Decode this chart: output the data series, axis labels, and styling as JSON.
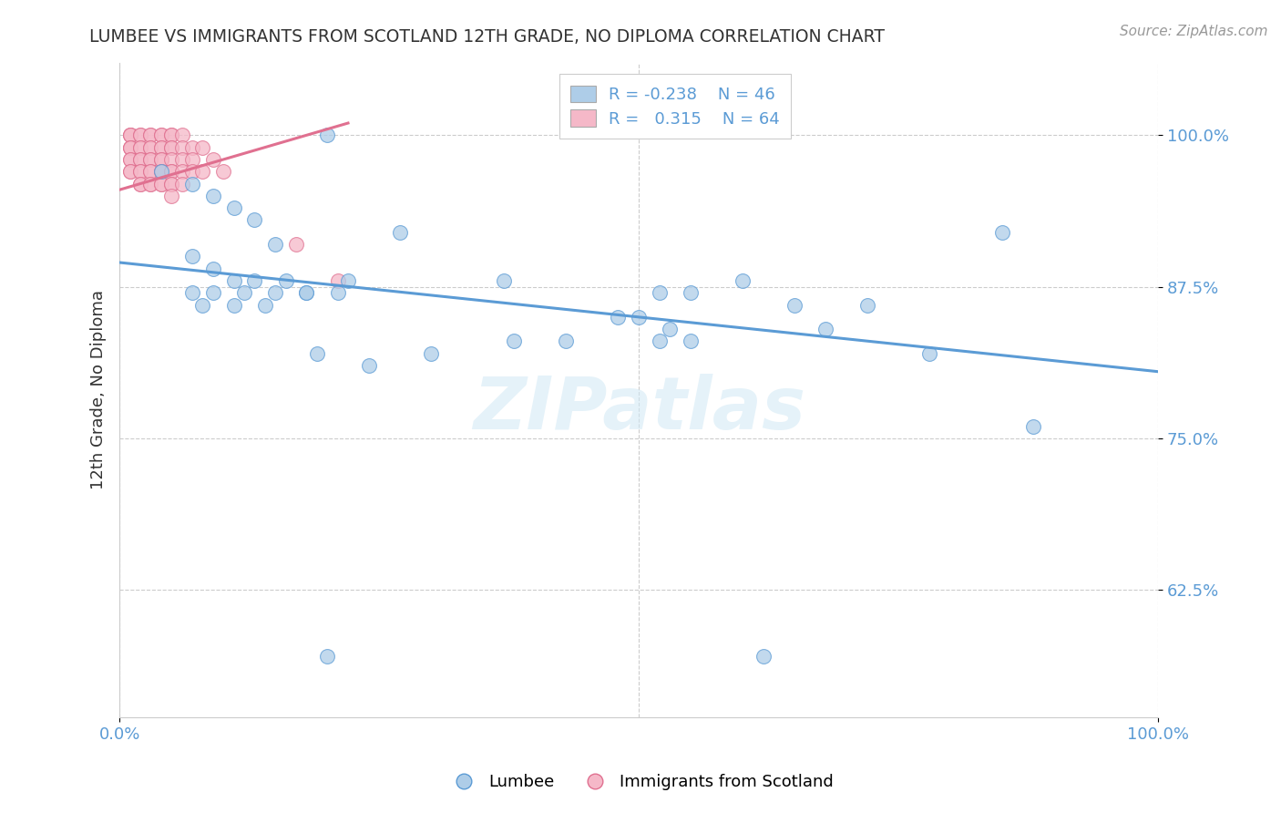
{
  "title": "LUMBEE VS IMMIGRANTS FROM SCOTLAND 12TH GRADE, NO DIPLOMA CORRELATION CHART",
  "source_text": "Source: ZipAtlas.com",
  "ylabel": "12th Grade, No Diploma",
  "xlim": [
    0.0,
    1.0
  ],
  "ylim": [
    0.52,
    1.06
  ],
  "yticks": [
    0.625,
    0.75,
    0.875,
    1.0
  ],
  "ytick_labels": [
    "62.5%",
    "75.0%",
    "87.5%",
    "100.0%"
  ],
  "xticks": [
    0.0,
    1.0
  ],
  "xtick_labels": [
    "0.0%",
    "100.0%"
  ],
  "legend_r_blue": "-0.238",
  "legend_n_blue": "46",
  "legend_r_pink": "0.315",
  "legend_n_pink": "64",
  "blue_color": "#aecde8",
  "pink_color": "#f5b8c8",
  "line_blue": "#5b9bd5",
  "line_pink": "#e07090",
  "watermark": "ZIPatlas",
  "background_color": "#ffffff",
  "blue_scatter_x": [
    0.2,
    0.04,
    0.07,
    0.09,
    0.11,
    0.13,
    0.15,
    0.07,
    0.09,
    0.11,
    0.13,
    0.16,
    0.18,
    0.21,
    0.07,
    0.09,
    0.12,
    0.15,
    0.18,
    0.08,
    0.11,
    0.14,
    0.22,
    0.27,
    0.37,
    0.52,
    0.55,
    0.48,
    0.6,
    0.65,
    0.68,
    0.72,
    0.78,
    0.5,
    0.43,
    0.38,
    0.3,
    0.24,
    0.19,
    0.85,
    0.88,
    0.53,
    0.55,
    0.2,
    0.52,
    0.62
  ],
  "blue_scatter_y": [
    1.0,
    0.97,
    0.96,
    0.95,
    0.94,
    0.93,
    0.91,
    0.9,
    0.89,
    0.88,
    0.88,
    0.88,
    0.87,
    0.87,
    0.87,
    0.87,
    0.87,
    0.87,
    0.87,
    0.86,
    0.86,
    0.86,
    0.88,
    0.92,
    0.88,
    0.87,
    0.87,
    0.85,
    0.88,
    0.86,
    0.84,
    0.86,
    0.82,
    0.85,
    0.83,
    0.83,
    0.82,
    0.81,
    0.82,
    0.92,
    0.76,
    0.84,
    0.83,
    0.57,
    0.83,
    0.57
  ],
  "pink_scatter_x": [
    0.01,
    0.01,
    0.01,
    0.01,
    0.01,
    0.01,
    0.01,
    0.01,
    0.01,
    0.01,
    0.02,
    0.02,
    0.02,
    0.02,
    0.02,
    0.02,
    0.02,
    0.02,
    0.02,
    0.02,
    0.03,
    0.03,
    0.03,
    0.03,
    0.03,
    0.03,
    0.03,
    0.03,
    0.03,
    0.03,
    0.04,
    0.04,
    0.04,
    0.04,
    0.04,
    0.04,
    0.04,
    0.04,
    0.04,
    0.04,
    0.05,
    0.05,
    0.05,
    0.05,
    0.05,
    0.05,
    0.05,
    0.05,
    0.05,
    0.05,
    0.06,
    0.06,
    0.06,
    0.06,
    0.06,
    0.07,
    0.07,
    0.07,
    0.08,
    0.08,
    0.09,
    0.1,
    0.17,
    0.21
  ],
  "pink_scatter_y": [
    1.0,
    1.0,
    1.0,
    0.99,
    0.99,
    0.99,
    0.98,
    0.98,
    0.97,
    0.97,
    1.0,
    1.0,
    0.99,
    0.99,
    0.98,
    0.98,
    0.97,
    0.97,
    0.96,
    0.96,
    1.0,
    1.0,
    0.99,
    0.99,
    0.98,
    0.98,
    0.97,
    0.97,
    0.96,
    0.96,
    1.0,
    1.0,
    0.99,
    0.99,
    0.98,
    0.98,
    0.97,
    0.97,
    0.96,
    0.96,
    1.0,
    1.0,
    0.99,
    0.99,
    0.98,
    0.97,
    0.97,
    0.96,
    0.96,
    0.95,
    1.0,
    0.99,
    0.98,
    0.97,
    0.96,
    0.99,
    0.98,
    0.97,
    0.99,
    0.97,
    0.98,
    0.97,
    0.91,
    0.88
  ],
  "blue_line_x": [
    0.0,
    1.0
  ],
  "blue_line_y": [
    0.895,
    0.805
  ],
  "pink_line_x": [
    0.0,
    0.22
  ],
  "pink_line_y": [
    0.955,
    1.01
  ]
}
